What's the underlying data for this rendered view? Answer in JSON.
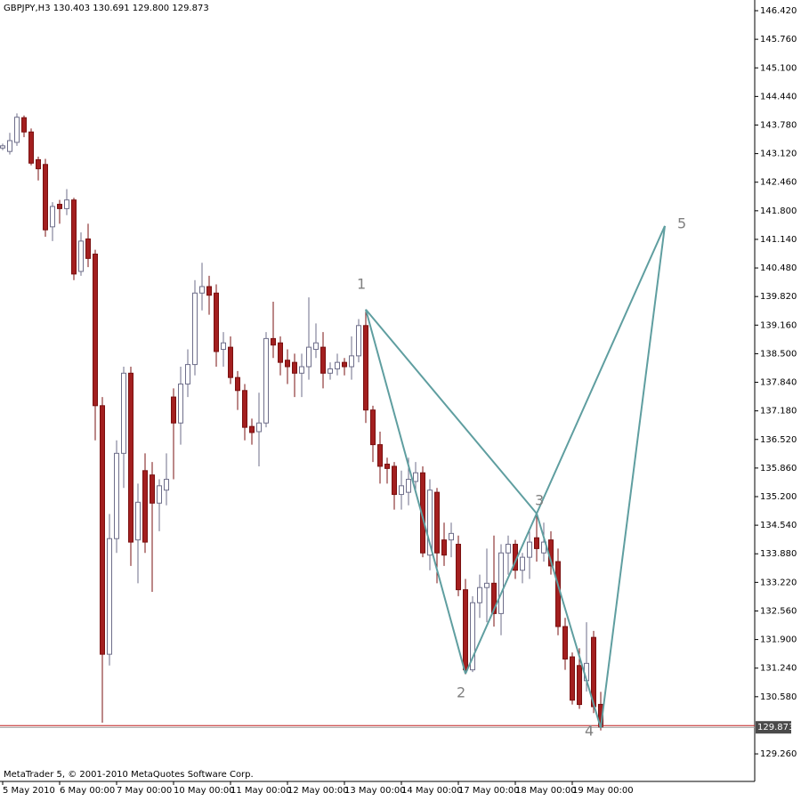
{
  "chart_data": {
    "type": "candlestick",
    "title": "GBPJPY,H3  130.403 130.691 129.800 129.873",
    "footer": "MetaTrader 5, © 2001-2010 MetaQuotes Software Corp.",
    "bull_color": "#ffffff",
    "bull_outline": "#6e6e8a",
    "bear_color": "#a31f1f",
    "bear_outline": "#7a1010",
    "open": [
      143.25,
      143.17,
      143.38,
      143.95,
      143.62,
      142.98,
      142.87,
      141.43,
      141.95,
      141.85,
      142.05,
      140.4,
      141.15,
      140.8,
      137.3,
      131.56,
      134.23,
      136.2,
      138.05,
      134.2,
      135.8,
      135.7,
      135.05,
      135.35,
      137.5,
      136.9,
      137.8,
      138.25,
      139.9,
      140.05,
      139.9,
      138.6,
      138.65,
      137.95,
      137.65,
      136.82,
      136.7,
      136.9,
      138.85,
      138.75,
      138.35,
      138.3,
      138.05,
      138.2,
      138.6,
      138.65,
      138.05,
      138.15,
      138.3,
      138.2,
      138.45,
      139.15,
      137.2,
      136.4,
      135.95,
      135.9,
      135.25,
      135.3,
      135.55,
      135.75,
      133.85,
      135.3,
      134.2,
      134.2,
      134.1,
      133.05,
      131.2,
      132.75,
      133.1,
      133.2,
      132.5,
      133.9,
      134.1,
      133.5,
      133.8,
      134.25,
      133.9,
      134.2,
      133.7,
      132.2,
      131.5,
      131.3,
      130.95,
      131.95,
      130.403
    ],
    "high": [
      143.35,
      143.6,
      144.05,
      144.0,
      143.7,
      143.05,
      143.0,
      142.0,
      142.05,
      142.3,
      142.1,
      141.3,
      141.5,
      140.9,
      137.5,
      134.8,
      136.5,
      138.2,
      138.2,
      135.5,
      136.2,
      136.0,
      135.6,
      136.2,
      137.7,
      138.2,
      138.6,
      140.2,
      140.6,
      140.3,
      140.1,
      139.0,
      138.9,
      138.1,
      137.8,
      137.0,
      137.6,
      139.0,
      139.7,
      138.9,
      138.6,
      138.5,
      138.5,
      139.8,
      139.2,
      139.0,
      138.3,
      138.5,
      138.4,
      138.9,
      139.3,
      139.52,
      137.3,
      136.7,
      136.1,
      136.0,
      135.8,
      136.1,
      136.0,
      135.9,
      135.6,
      135.4,
      134.6,
      134.6,
      134.3,
      133.3,
      132.9,
      133.4,
      134.0,
      134.3,
      134.1,
      134.3,
      134.2,
      133.9,
      134.4,
      134.8,
      134.6,
      134.4,
      134.0,
      132.4,
      131.6,
      131.7,
      132.3,
      132.1,
      130.691
    ],
    "low": [
      143.2,
      143.1,
      143.3,
      143.5,
      142.85,
      142.5,
      141.2,
      141.1,
      141.5,
      141.7,
      140.2,
      140.3,
      140.5,
      136.5,
      129.98,
      131.3,
      133.9,
      135.4,
      133.6,
      133.2,
      133.9,
      133.0,
      134.4,
      135.0,
      135.6,
      136.4,
      137.5,
      138.0,
      139.5,
      139.4,
      138.2,
      138.2,
      137.8,
      137.2,
      136.5,
      136.4,
      135.9,
      136.8,
      138.4,
      138.0,
      137.8,
      137.5,
      137.5,
      137.9,
      138.4,
      137.7,
      137.9,
      138.0,
      138.0,
      137.9,
      138.3,
      136.9,
      136.0,
      135.5,
      135.5,
      134.9,
      134.9,
      135.0,
      135.3,
      133.8,
      133.5,
      133.2,
      133.6,
      133.8,
      132.9,
      131.1,
      131.15,
      132.4,
      132.3,
      132.2,
      132.0,
      133.4,
      133.3,
      133.2,
      133.3,
      133.7,
      133.7,
      133.4,
      132.0,
      131.2,
      130.4,
      130.3,
      130.7,
      130.2,
      129.8
    ],
    "close": [
      143.3,
      143.42,
      143.96,
      143.62,
      142.9,
      142.77,
      141.36,
      141.9,
      141.85,
      142.05,
      140.34,
      141.1,
      140.7,
      137.3,
      131.56,
      134.23,
      136.2,
      138.05,
      134.15,
      135.07,
      134.15,
      135.05,
      135.45,
      135.6,
      136.9,
      137.8,
      138.25,
      139.9,
      140.05,
      139.85,
      138.55,
      138.75,
      137.95,
      137.65,
      136.8,
      136.68,
      136.9,
      138.85,
      138.7,
      138.3,
      138.2,
      138.05,
      138.2,
      138.65,
      138.75,
      138.05,
      138.15,
      138.3,
      138.2,
      138.45,
      139.15,
      137.2,
      136.4,
      135.9,
      135.85,
      135.25,
      135.45,
      135.6,
      135.75,
      133.9,
      135.35,
      133.9,
      133.85,
      134.35,
      133.05,
      131.2,
      132.75,
      133.1,
      133.2,
      132.5,
      133.9,
      134.1,
      133.5,
      133.8,
      134.15,
      134.0,
      134.15,
      133.6,
      132.2,
      131.45,
      130.5,
      130.4,
      131.35,
      130.35,
      129.873
    ],
    "xlim": [
      -0.375,
      105.625
    ],
    "xticks": [
      {
        "value": 0,
        "label": "5 May 2010"
      },
      {
        "value": 8,
        "label": "6 May 00:00"
      },
      {
        "value": 16,
        "label": "7 May 00:00"
      },
      {
        "value": 24,
        "label": "10 May 00:00"
      },
      {
        "value": 32,
        "label": "11 May 00:00"
      },
      {
        "value": 40,
        "label": "12 May 00:00"
      },
      {
        "value": 48,
        "label": "13 May 00:00"
      },
      {
        "value": 56,
        "label": "14 May 00:00"
      },
      {
        "value": 64,
        "label": "17 May 00:00"
      },
      {
        "value": 72,
        "label": "18 May 00:00"
      },
      {
        "value": 80,
        "label": "19 May 00:00"
      }
    ],
    "ylim": [
      128.624,
      146.667
    ],
    "yticks": [
      {
        "value": 146.42,
        "label": "146.420"
      },
      {
        "value": 145.76,
        "label": "145.760"
      },
      {
        "value": 145.1,
        "label": "145.100"
      },
      {
        "value": 144.44,
        "label": "144.440"
      },
      {
        "value": 143.78,
        "label": "143.780"
      },
      {
        "value": 143.12,
        "label": "143.120"
      },
      {
        "value": 142.46,
        "label": "142.460"
      },
      {
        "value": 141.8,
        "label": "141.800"
      },
      {
        "value": 141.14,
        "label": "141.140"
      },
      {
        "value": 140.48,
        "label": "140.480"
      },
      {
        "value": 139.82,
        "label": "139.820"
      },
      {
        "value": 139.16,
        "label": "139.160"
      },
      {
        "value": 138.5,
        "label": "138.500"
      },
      {
        "value": 137.84,
        "label": "137.840"
      },
      {
        "value": 137.18,
        "label": "137.180"
      },
      {
        "value": 136.52,
        "label": "136.520"
      },
      {
        "value": 135.86,
        "label": "135.860"
      },
      {
        "value": 135.2,
        "label": "135.200"
      },
      {
        "value": 134.54,
        "label": "134.540"
      },
      {
        "value": 133.88,
        "label": "133.880"
      },
      {
        "value": 133.22,
        "label": "133.220"
      },
      {
        "value": 132.56,
        "label": "132.560"
      },
      {
        "value": 131.9,
        "label": "131.900"
      },
      {
        "value": 131.24,
        "label": "131.240"
      },
      {
        "value": 130.58,
        "label": "130.580"
      },
      {
        "value": 129.26,
        "label": "129.260"
      }
    ],
    "last_price": 129.873,
    "last_price_color": "#c02020",
    "pattern": {
      "color": "#5f9ea0",
      "points": [
        {
          "label": "1",
          "x": 51,
          "y": 139.52
        },
        {
          "label": "2",
          "x": 65,
          "y": 131.11
        },
        {
          "label": "3",
          "x": 75,
          "y": 134.81
        },
        {
          "label": "4",
          "x": 84,
          "y": 129.86
        },
        {
          "label": "5",
          "x": 93,
          "y": 141.45
        }
      ]
    }
  }
}
